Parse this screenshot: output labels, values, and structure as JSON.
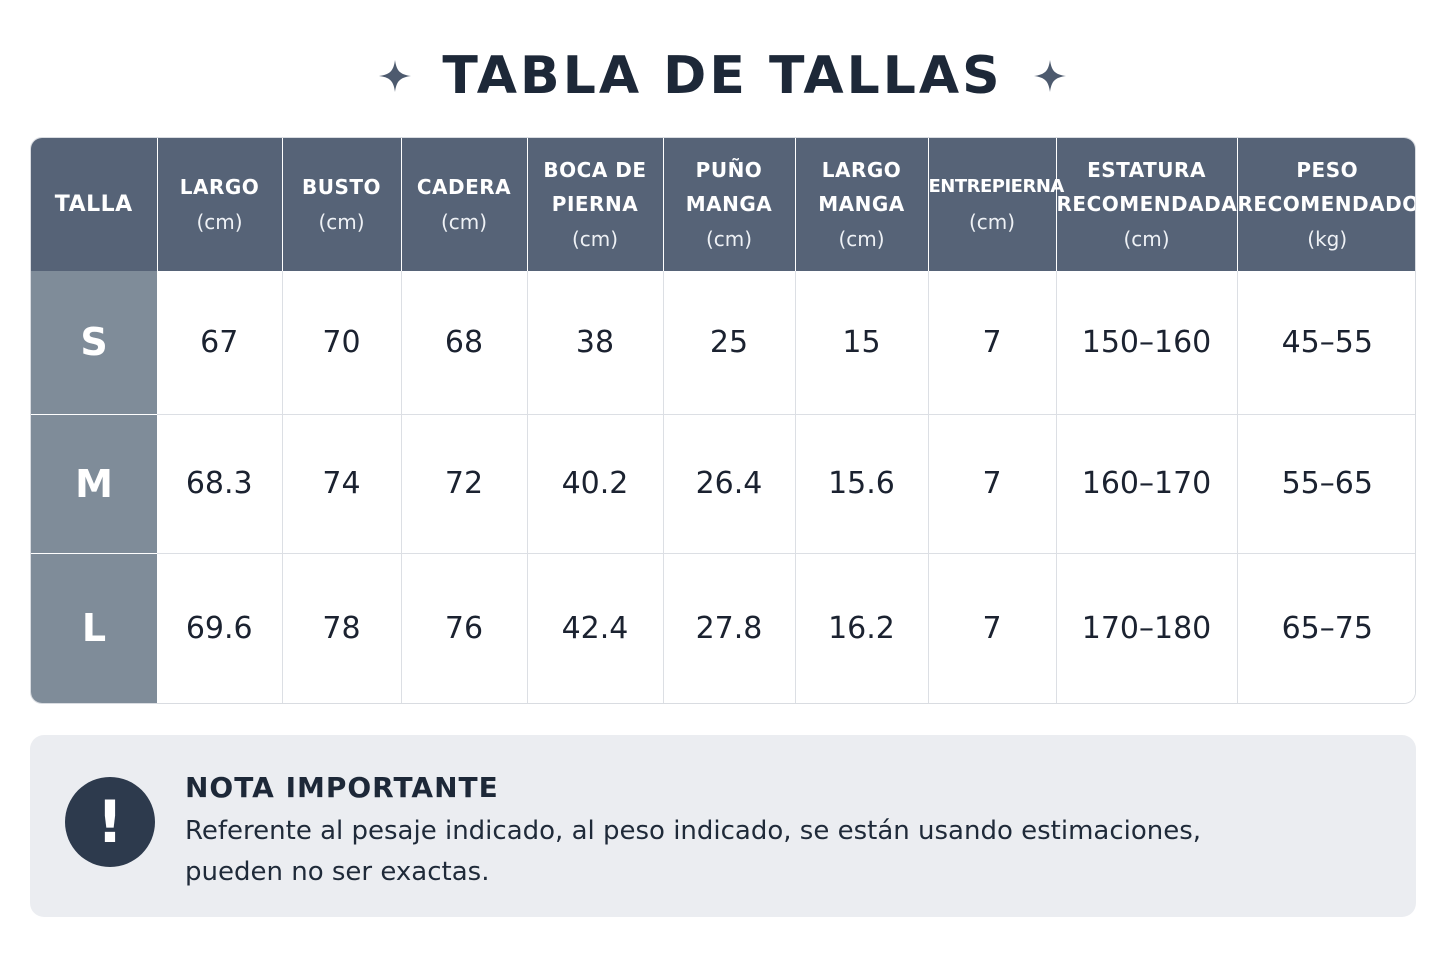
{
  "title": "TABLA DE TALLAS",
  "headers": [
    {
      "title": "TALLA",
      "unit": ""
    },
    {
      "title": "LARGO",
      "unit": "(cm)"
    },
    {
      "title": "BUSTO",
      "unit": "(cm)"
    },
    {
      "title": "CADERA",
      "unit": "(cm)"
    },
    {
      "title": "BOCA DE PIERNA",
      "line1": "BOCA DE",
      "line2": "PIERNA",
      "unit": "(cm)"
    },
    {
      "title": "PUÑO MANGA",
      "line1": "PUÑO",
      "line2": "MANGA",
      "unit": "(cm)"
    },
    {
      "title": "LARGO MANGA",
      "line1": "LARGO",
      "line2": "MANGA",
      "unit": "(cm)"
    },
    {
      "title": "ENTREPIERNA",
      "unit": "(cm)"
    },
    {
      "title": "ESTATURA RECOMENDADA",
      "line1": "ESTATURA",
      "line2": "RECOMENDADA",
      "unit": "(cm)"
    },
    {
      "title": "PESO RECOMENDADO",
      "line1": "PESO",
      "line2": "RECOMENDADO",
      "unit": "(kg)"
    }
  ],
  "rows": [
    {
      "size": "S",
      "values": [
        "67",
        "70",
        "68",
        "38",
        "25",
        "15",
        "7",
        "150–160",
        "45–55"
      ]
    },
    {
      "size": "M",
      "values": [
        "68.3",
        "74",
        "72",
        "40.2",
        "26.4",
        "15.6",
        "7",
        "160–170",
        "55–65"
      ]
    },
    {
      "size": "L",
      "values": [
        "69.6",
        "78",
        "76",
        "42.4",
        "27.8",
        "16.2",
        "7",
        "170–180",
        "65–75"
      ]
    }
  ],
  "note": {
    "icon": "exclamation-icon",
    "title": "NOTA IMPORTANTE",
    "text_line1": "Referente al pesaje indicado, al peso indicado, se están usando estimaciones,",
    "text_line2": "pueden no ser exactas."
  },
  "colors": {
    "header_bg": "#566377",
    "size_col_bg": "#7f8c99",
    "note_bg": "#ebedf1",
    "note_icon_bg": "#2d3a4d",
    "title_text": "#1d2838"
  }
}
